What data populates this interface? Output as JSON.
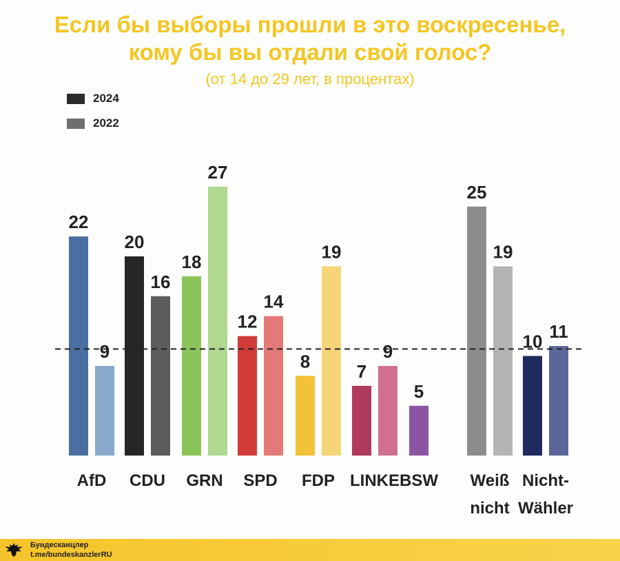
{
  "title_line1": "Если бы выборы прошли в это воскресенье,",
  "title_line2": "кому бы вы отдали свой голос?",
  "subtitle": "(от 14 до 29 лет, в процентах)",
  "footer": {
    "line1": "Бундесканцлер",
    "line2": "t.me/bundeskanzlerRU",
    "icon": "eagle-icon"
  },
  "chart_data": {
    "type": "bar",
    "title": "Если бы выборы прошли в это воскресенье, кому бы вы отдали свой голос?",
    "subtitle": "(от 14 до 29 лет, в процентах)",
    "legend": {
      "position": "top-left",
      "entries": [
        {
          "name": "2024",
          "color": "#2b2b2b"
        },
        {
          "name": "2022",
          "color": "#6e6e6e"
        }
      ]
    },
    "categories": [
      {
        "lines": [
          "AfD"
        ]
      },
      {
        "lines": [
          "CDU"
        ]
      },
      {
        "lines": [
          "GRN"
        ]
      },
      {
        "lines": [
          "SPD"
        ]
      },
      {
        "lines": [
          "FDP"
        ]
      },
      {
        "lines": [
          "LINKE"
        ]
      },
      {
        "lines": [
          "BSW"
        ]
      },
      {
        "lines": [
          "Weiß",
          "nicht"
        ]
      },
      {
        "lines": [
          "Nicht-",
          "Wähler"
        ]
      }
    ],
    "series": [
      {
        "name": "2024",
        "values": [
          22,
          20,
          18,
          12,
          8,
          7,
          5,
          25,
          10
        ]
      },
      {
        "name": "2022",
        "values": [
          9,
          16,
          27,
          14,
          19,
          9,
          null,
          19,
          11
        ]
      }
    ],
    "colors": {
      "2024": [
        "#4a6fa0",
        "#262626",
        "#8bc55a",
        "#d13c39",
        "#f2c338",
        "#b03a5e",
        "#8c55a4",
        "#8c8c8c",
        "#1f2a5e"
      ],
      "2022": [
        "#88a9c9",
        "#5c5c5c",
        "#b1d890",
        "#e47a77",
        "#f6d478",
        "#d0708e",
        null,
        "#b4b4b4",
        "#5c6799"
      ]
    },
    "reference_line": {
      "value": 10.7,
      "style": "dashed"
    },
    "ylim": [
      0,
      27
    ],
    "grid": false
  }
}
